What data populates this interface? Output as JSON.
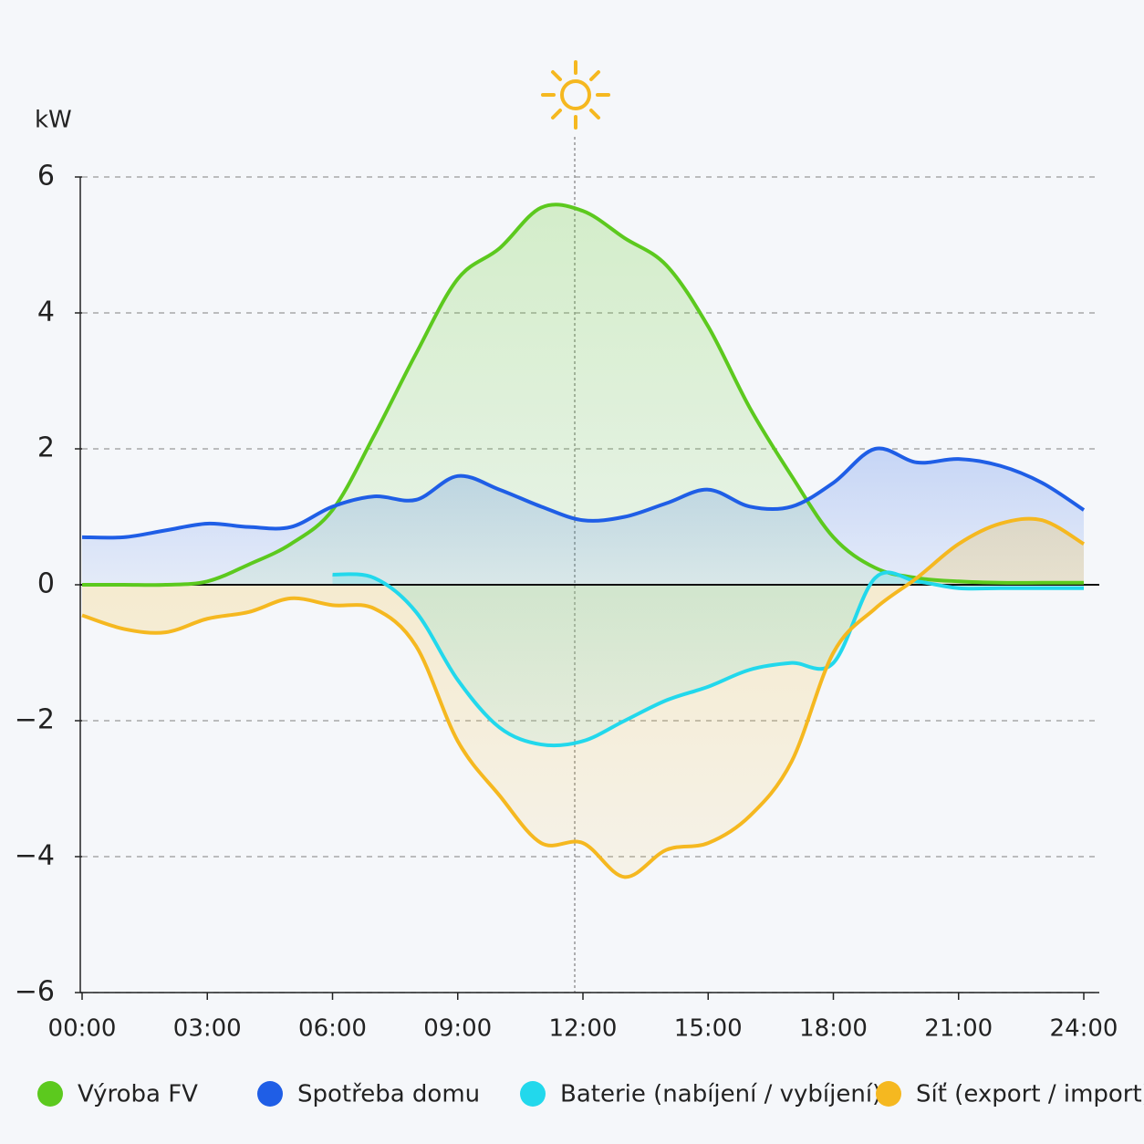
{
  "chart_data": {
    "type": "line",
    "y_unit": "kW",
    "x": [
      0,
      1,
      2,
      3,
      4,
      5,
      6,
      7,
      8,
      9,
      10,
      11,
      12,
      13,
      14,
      15,
      16,
      17,
      18,
      19,
      20,
      21,
      22,
      23,
      24
    ],
    "xlim": [
      0,
      24
    ],
    "xticks": [
      {
        "value": 0,
        "label": "00:00"
      },
      {
        "value": 3,
        "label": "03:00"
      },
      {
        "value": 6,
        "label": "06:00"
      },
      {
        "value": 9,
        "label": "09:00"
      },
      {
        "value": 12,
        "label": "12:00"
      },
      {
        "value": 15,
        "label": "15:00"
      },
      {
        "value": 18,
        "label": "18:00"
      },
      {
        "value": 21,
        "label": "21:00"
      },
      {
        "value": 24,
        "label": "24:00"
      }
    ],
    "ylim": [
      -6,
      6
    ],
    "yticks": [
      {
        "value": -6,
        "label": "−6"
      },
      {
        "value": -4,
        "label": "−4"
      },
      {
        "value": -2,
        "label": "−2"
      },
      0,
      2,
      4,
      6
    ],
    "grid": true,
    "series": [
      {
        "name": "Výroba FV",
        "color": "#5cc91e",
        "values": [
          0,
          0,
          0,
          0.05,
          0.3,
          0.6,
          1.1,
          2.2,
          3.4,
          4.5,
          4.95,
          5.55,
          5.5,
          5.1,
          4.7,
          3.8,
          2.6,
          1.6,
          0.7,
          0.25,
          0.1,
          0.05,
          0.03,
          0.03,
          0.03
        ]
      },
      {
        "name": "Spotřeba domu",
        "color": "#1f5ee6",
        "values": [
          0.7,
          0.7,
          0.8,
          0.9,
          0.85,
          0.85,
          1.15,
          1.3,
          1.25,
          1.6,
          1.4,
          1.15,
          0.95,
          1.0,
          1.2,
          1.4,
          1.15,
          1.15,
          1.5,
          2.0,
          1.8,
          1.85,
          1.75,
          1.5,
          1.1
        ]
      },
      {
        "name": "Baterie (nabíjení / vybíjení)",
        "color": "#22d8ec",
        "values": [
          null,
          null,
          null,
          null,
          null,
          null,
          0.15,
          0.1,
          -0.4,
          -1.4,
          -2.1,
          -2.35,
          -2.3,
          -2.0,
          -1.7,
          -1.5,
          -1.25,
          -1.15,
          -1.15,
          0.1,
          0.05,
          -0.05,
          -0.05,
          -0.05,
          -0.05
        ]
      },
      {
        "name": "Síť (export / import)",
        "color": "#f5b820",
        "values": [
          -0.45,
          -0.65,
          -0.7,
          -0.5,
          -0.4,
          -0.2,
          -0.3,
          -0.35,
          -0.9,
          -2.3,
          -3.1,
          -3.8,
          -3.8,
          -4.3,
          -3.9,
          -3.8,
          -3.4,
          -2.6,
          -1.0,
          -0.35,
          0.1,
          0.6,
          0.9,
          0.95,
          0.6
        ]
      }
    ]
  }
}
